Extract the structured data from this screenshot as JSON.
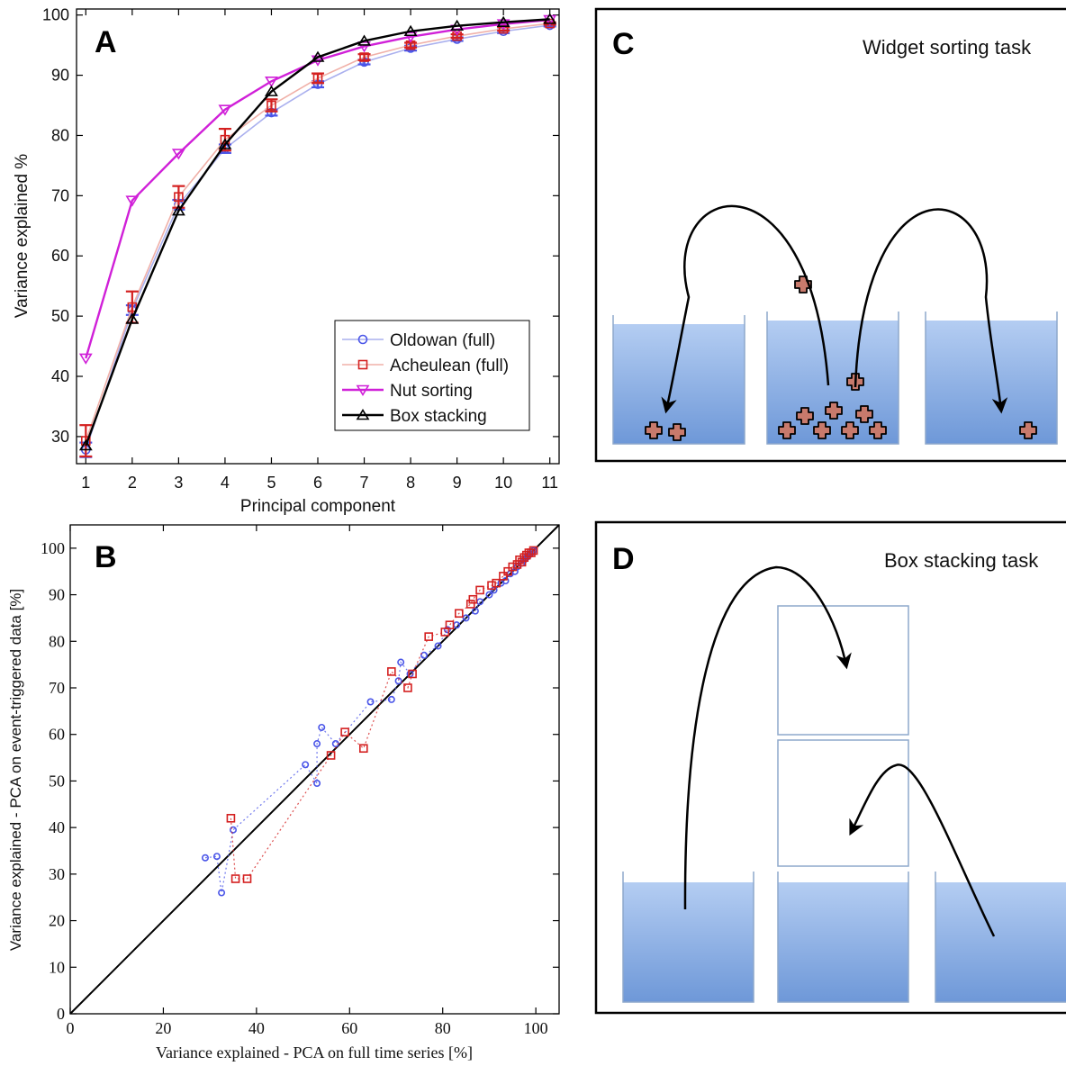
{
  "colors": {
    "oldowan": "#4a55e8",
    "oldowan_line": "#aab0ee",
    "acheulean": "#d42020",
    "acheulean_line": "#f0b0a8",
    "nut": "#d020d8",
    "box": "#000000",
    "water_top": "#b4cdf2",
    "water_bottom": "#6e98d8",
    "widget": "#c87a6c",
    "cup_border": "#8ea8cc"
  },
  "panels": {
    "a_label": "A",
    "b_label": "B",
    "c_label": "C",
    "d_label": "D",
    "c_title": "Widget sorting task",
    "d_title": "Box stacking task"
  },
  "chart_data": [
    {
      "type": "line",
      "panel": "A",
      "xlabel": "Principal component",
      "ylabel": "Variance explained %",
      "x": [
        1,
        2,
        3,
        4,
        5,
        6,
        7,
        8,
        9,
        10,
        11
      ],
      "xlim": [
        0.8,
        11.2
      ],
      "ylim": [
        25.5,
        101
      ],
      "xticks": [
        1,
        2,
        3,
        4,
        5,
        6,
        7,
        8,
        9,
        10,
        11
      ],
      "yticks": [
        30,
        40,
        50,
        60,
        70,
        80,
        90,
        100
      ],
      "legend_position": "bottom-right",
      "series": [
        {
          "name": "Oldowan (full)",
          "marker": "circle",
          "values": [
            27.8,
            51.0,
            68.5,
            77.8,
            83.8,
            88.5,
            92.2,
            94.5,
            96.0,
            97.3,
            98.3
          ],
          "errors": [
            1.2,
            0.8,
            0.8,
            0.7,
            0.5,
            0.5,
            0.4,
            0.4,
            0.3,
            0.3,
            0.2
          ]
        },
        {
          "name": "Acheulean (full)",
          "marker": "square",
          "values": [
            29.3,
            51.5,
            69.8,
            79.3,
            85.0,
            89.5,
            93.0,
            95.0,
            96.5,
            97.7,
            98.6
          ],
          "errors": [
            2.6,
            2.6,
            1.8,
            1.8,
            1.0,
            0.8,
            0.5,
            0.4,
            0.3,
            0.3,
            0.2
          ]
        },
        {
          "name": "Nut sorting",
          "marker": "triangle-down",
          "values": [
            43.0,
            69.2,
            77.0,
            84.3,
            89.0,
            92.5,
            94.8,
            96.4,
            97.6,
            98.5,
            99.2
          ]
        },
        {
          "name": "Box stacking",
          "marker": "triangle-up",
          "values": [
            28.5,
            49.5,
            67.5,
            78.5,
            87.3,
            93.0,
            95.7,
            97.3,
            98.2,
            98.8,
            99.3
          ]
        }
      ]
    },
    {
      "type": "scatter",
      "panel": "B",
      "xlabel": "Variance explained - PCA on full time series [%]",
      "ylabel": "Variance explained - PCA on event-triggered data [%]",
      "xlim": [
        0,
        105
      ],
      "ylim": [
        0,
        105
      ],
      "xticks": [
        0,
        20,
        40,
        60,
        80,
        100
      ],
      "yticks": [
        0,
        10,
        20,
        30,
        40,
        50,
        60,
        70,
        80,
        90,
        100
      ],
      "diagonal": true,
      "series": [
        {
          "name": "Oldowan",
          "marker": "circle",
          "points": [
            [
              29.0,
              33.5
            ],
            [
              31.5,
              33.8
            ],
            [
              32.5,
              26.0
            ],
            [
              35.0,
              39.5
            ],
            [
              50.5,
              53.5
            ],
            [
              53.0,
              49.5
            ],
            [
              53.0,
              58.0
            ],
            [
              54.0,
              61.5
            ],
            [
              57.0,
              58.0
            ],
            [
              64.5,
              67.0
            ],
            [
              69.0,
              67.5
            ],
            [
              70.5,
              71.5
            ],
            [
              71.0,
              75.5
            ],
            [
              73.0,
              73.0
            ],
            [
              76.0,
              77.0
            ],
            [
              79.0,
              79.0
            ],
            [
              81.0,
              82.5
            ],
            [
              83.0,
              83.5
            ],
            [
              85.0,
              85.0
            ],
            [
              87.0,
              86.5
            ],
            [
              88.0,
              88.5
            ],
            [
              90.0,
              90.0
            ],
            [
              91.0,
              91.0
            ],
            [
              92.5,
              92.5
            ],
            [
              93.5,
              93.0
            ],
            [
              94.5,
              94.5
            ],
            [
              95.5,
              95.0
            ],
            [
              96.0,
              96.0
            ],
            [
              97.0,
              96.8
            ],
            [
              97.5,
              97.5
            ],
            [
              98.0,
              98.0
            ],
            [
              98.5,
              98.5
            ],
            [
              99.0,
              99.0
            ],
            [
              99.5,
              99.5
            ]
          ]
        },
        {
          "name": "Acheulean",
          "marker": "square",
          "points": [
            [
              34.5,
              42.0
            ],
            [
              35.5,
              29.0
            ],
            [
              38.0,
              29.0
            ],
            [
              56.0,
              55.5
            ],
            [
              59.0,
              60.5
            ],
            [
              63.0,
              57.0
            ],
            [
              69.0,
              73.5
            ],
            [
              72.5,
              70.0
            ],
            [
              73.5,
              73.0
            ],
            [
              77.0,
              81.0
            ],
            [
              80.5,
              82.0
            ],
            [
              81.5,
              83.5
            ],
            [
              83.5,
              86.0
            ],
            [
              86.0,
              88.0
            ],
            [
              86.5,
              89.0
            ],
            [
              88.0,
              91.0
            ],
            [
              90.5,
              92.0
            ],
            [
              91.5,
              92.5
            ],
            [
              93.0,
              94.0
            ],
            [
              94.0,
              95.0
            ],
            [
              95.0,
              96.0
            ],
            [
              96.0,
              96.5
            ],
            [
              96.5,
              97.5
            ],
            [
              97.0,
              97.0
            ],
            [
              97.5,
              98.0
            ],
            [
              98.0,
              98.5
            ],
            [
              98.5,
              99.0
            ],
            [
              99.0,
              99.0
            ],
            [
              99.5,
              99.5
            ]
          ]
        }
      ]
    }
  ]
}
